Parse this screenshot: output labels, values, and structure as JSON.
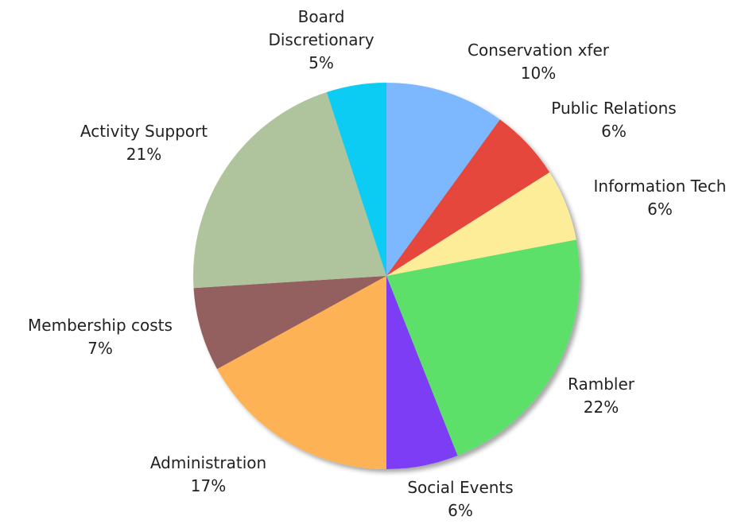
{
  "chart_data": {
    "type": "pie",
    "title": "",
    "slices": [
      {
        "label": "Conservation xfer",
        "value": 10,
        "display": "10%",
        "color": "#7db8ff"
      },
      {
        "label": "Public Relations",
        "value": 6,
        "display": "6%",
        "color": "#e5463c"
      },
      {
        "label": "Information Tech",
        "value": 6,
        "display": "6%",
        "color": "#fdec98"
      },
      {
        "label": "Rambler",
        "value": 22,
        "display": "22%",
        "color": "#5be06a"
      },
      {
        "label": "Social Events",
        "value": 6,
        "display": "6%",
        "color": "#7d3ef5"
      },
      {
        "label": "Administration",
        "value": 17,
        "display": "17%",
        "color": "#fdb255"
      },
      {
        "label": "Membership costs",
        "value": 7,
        "display": "7%",
        "color": "#94605e"
      },
      {
        "label": "Activity Support",
        "value": 21,
        "display": "21%",
        "color": "#afc49d"
      },
      {
        "label": "Board Discretionary",
        "value": 5,
        "display": "5%",
        "color": "#09ccf4",
        "label_lines": [
          "Board",
          "Discretionary"
        ]
      }
    ],
    "start_angle_deg": 0,
    "direction": "clockwise",
    "legend": "none",
    "labels": "outside"
  }
}
